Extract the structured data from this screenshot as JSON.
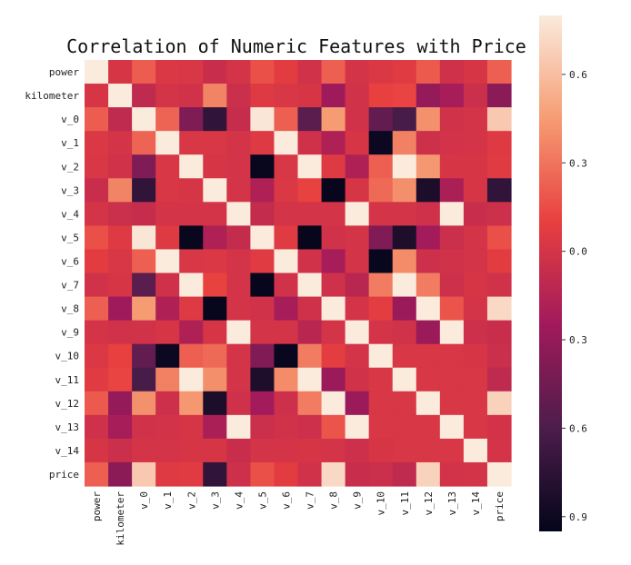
{
  "chart_data": {
    "type": "heatmap",
    "title": "Correlation of Numeric Features with Price",
    "row_labels": [
      "power",
      "kilometer",
      "v_0",
      "v_1",
      "v_2",
      "v_3",
      "v_4",
      "v_5",
      "v_6",
      "v_7",
      "v_8",
      "v_9",
      "v_10",
      "v_11",
      "v_12",
      "v_13",
      "v_14",
      "price"
    ],
    "col_labels": [
      "power",
      "kilometer",
      "v_0",
      "v_1",
      "v_2",
      "v_3",
      "v_4",
      "v_5",
      "v_6",
      "v_7",
      "v_8",
      "v_9",
      "v_10",
      "v_11",
      "v_12",
      "v_13",
      "v_14",
      "price"
    ],
    "values": [
      [
        1.0,
        0.01,
        0.21,
        0.03,
        0.02,
        -0.06,
        0.0,
        0.16,
        0.07,
        -0.02,
        0.22,
        0.0,
        0.03,
        0.06,
        0.2,
        -0.03,
        0.01,
        0.22
      ],
      [
        0.01,
        1.0,
        -0.1,
        0.0,
        -0.02,
        0.36,
        -0.05,
        0.05,
        0.02,
        0.01,
        -0.26,
        -0.02,
        0.1,
        0.12,
        -0.3,
        -0.22,
        -0.05,
        -0.34
      ],
      [
        0.21,
        -0.1,
        1.0,
        0.24,
        -0.39,
        -0.73,
        -0.07,
        0.78,
        0.22,
        -0.54,
        0.45,
        -0.02,
        -0.51,
        -0.62,
        0.41,
        -0.02,
        0.0,
        0.65
      ],
      [
        0.03,
        0.0,
        0.24,
        1.0,
        0.02,
        0.02,
        0.0,
        0.05,
        0.95,
        -0.03,
        -0.18,
        0.01,
        -0.9,
        0.35,
        -0.04,
        -0.01,
        0.0,
        0.05
      ],
      [
        0.02,
        -0.02,
        -0.39,
        0.02,
        1.0,
        0.01,
        0.0,
        -0.92,
        0.02,
        0.9,
        0.05,
        -0.18,
        0.22,
        0.82,
        0.43,
        0.01,
        0.01,
        0.06
      ],
      [
        -0.06,
        0.36,
        -0.73,
        0.02,
        0.01,
        1.0,
        0.0,
        -0.18,
        0.03,
        0.11,
        -0.93,
        0.01,
        0.26,
        0.4,
        -0.83,
        -0.2,
        0.01,
        -0.73
      ],
      [
        0.0,
        -0.05,
        -0.07,
        0.0,
        0.0,
        0.0,
        1.0,
        -0.08,
        0.0,
        0.0,
        0.0,
        0.96,
        0.0,
        0.0,
        -0.03,
        0.95,
        -0.06,
        -0.04
      ],
      [
        0.16,
        0.05,
        0.78,
        0.05,
        -0.92,
        -0.18,
        -0.08,
        1.0,
        0.06,
        -0.93,
        -0.02,
        0.0,
        -0.38,
        -0.82,
        -0.24,
        -0.05,
        0.0,
        0.16
      ],
      [
        0.07,
        0.02,
        0.22,
        0.95,
        0.02,
        0.03,
        0.0,
        0.06,
        1.0,
        -0.02,
        -0.22,
        0.0,
        -0.92,
        0.39,
        -0.04,
        -0.02,
        0.0,
        0.07
      ],
      [
        -0.02,
        0.01,
        -0.54,
        -0.03,
        0.9,
        0.11,
        0.0,
        -0.93,
        -0.02,
        1.0,
        -0.03,
        -0.13,
        0.33,
        0.85,
        0.33,
        -0.04,
        0.01,
        -0.02
      ],
      [
        0.22,
        -0.26,
        0.45,
        -0.18,
        0.05,
        -0.93,
        0.0,
        -0.02,
        -0.22,
        -0.03,
        1.0,
        0.0,
        0.08,
        -0.28,
        0.9,
        0.18,
        0.0,
        0.72
      ],
      [
        0.0,
        -0.02,
        -0.02,
        0.01,
        -0.18,
        0.01,
        0.96,
        0.0,
        0.0,
        -0.13,
        0.0,
        1.0,
        0.0,
        -0.02,
        -0.28,
        0.95,
        -0.04,
        -0.06
      ],
      [
        0.03,
        0.1,
        -0.51,
        -0.9,
        0.22,
        0.26,
        0.0,
        -0.38,
        -0.92,
        0.33,
        0.08,
        0.0,
        1.0,
        0.02,
        0.02,
        0.02,
        0.01,
        -0.05
      ],
      [
        0.06,
        0.12,
        -0.62,
        0.35,
        0.82,
        0.4,
        0.0,
        -0.82,
        0.39,
        0.85,
        -0.28,
        -0.02,
        0.02,
        1.0,
        0.02,
        0.02,
        0.02,
        -0.1
      ],
      [
        0.2,
        -0.3,
        0.41,
        -0.04,
        0.43,
        -0.83,
        -0.03,
        -0.24,
        -0.04,
        0.33,
        0.9,
        -0.28,
        0.02,
        0.02,
        1.0,
        0.02,
        0.02,
        0.69
      ],
      [
        -0.03,
        -0.22,
        -0.02,
        -0.01,
        0.01,
        -0.2,
        0.95,
        -0.05,
        -0.02,
        -0.04,
        0.18,
        0.95,
        0.02,
        0.02,
        0.02,
        1.0,
        0.02,
        -0.01
      ],
      [
        0.01,
        -0.05,
        0.0,
        0.0,
        0.01,
        0.01,
        -0.06,
        0.0,
        0.0,
        0.01,
        0.0,
        -0.04,
        0.01,
        0.02,
        0.02,
        0.02,
        1.0,
        0.0
      ],
      [
        0.22,
        -0.34,
        0.65,
        0.05,
        0.06,
        -0.73,
        -0.04,
        0.16,
        0.07,
        -0.02,
        0.72,
        -0.06,
        -0.05,
        -0.1,
        0.69,
        -0.01,
        0.0,
        1.0
      ]
    ],
    "colorbar": {
      "ticks": [
        {
          "value": 0.6,
          "label": "0.6"
        },
        {
          "value": 0.3,
          "label": "0.3"
        },
        {
          "value": 0.0,
          "label": "0.0"
        },
        {
          "value": -0.3,
          "label": "0.3"
        },
        {
          "value": -0.6,
          "label": "0.6"
        },
        {
          "value": -0.9,
          "label": "0.9"
        }
      ],
      "vmin": -0.95,
      "vmax": 0.8
    },
    "colormap": [
      "#03051a",
      "#4c1d4b",
      "#a11a5b",
      "#e83f3f",
      "#f69c73",
      "#faebdd"
    ],
    "legend": "right"
  }
}
